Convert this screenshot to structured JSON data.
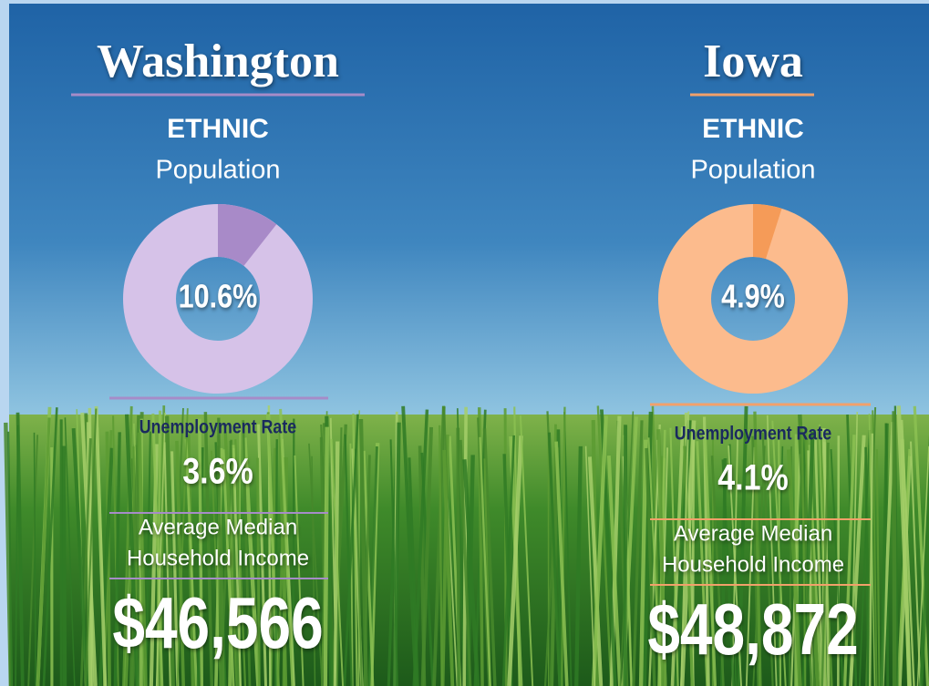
{
  "panels": [
    {
      "state": "Washington",
      "heading": "ETHNIC",
      "subheading": "Population",
      "ethnic": {
        "value": 10.6,
        "label": "10.6%"
      },
      "unemployment_label": "Unemployment Rate",
      "unemployment": "3.6%",
      "income_label": [
        "Average Median",
        "Household Income"
      ],
      "income": "$46,566"
    },
    {
      "state": "Iowa",
      "heading": "ETHNIC",
      "subheading": "Population",
      "ethnic": {
        "value": 4.9,
        "label": "4.9%"
      },
      "unemployment_label": "Unemployment Rate",
      "unemployment": "4.1%",
      "income_label": [
        "Average Median",
        "Household Income"
      ],
      "income": "$48,872"
    }
  ]
}
